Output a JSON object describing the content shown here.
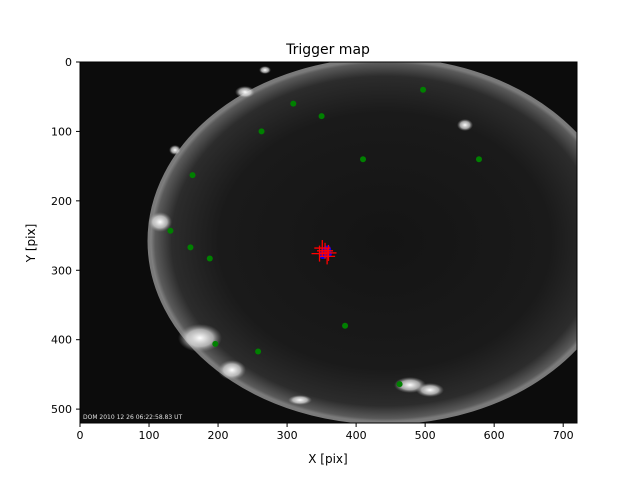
{
  "chart_data": {
    "type": "scatter",
    "title": "Trigger map",
    "xlabel": "X [pix]",
    "ylabel": "Y [pix]",
    "xlim": [
      0,
      720
    ],
    "ylim": [
      520,
      0
    ],
    "y_inverted": true,
    "xticks": [
      0,
      100,
      200,
      300,
      400,
      500,
      600,
      700
    ],
    "yticks": [
      0,
      100,
      200,
      300,
      400,
      500
    ],
    "background": "all-sky camera image (fisheye night sky)",
    "timestamp_overlay": "DOM 2010 12 26 06:22:58.83 UT",
    "series": [
      {
        "color": "#008000",
        "marker": "circle",
        "points": [
          {
            "x": 309,
            "y": 60
          },
          {
            "x": 350,
            "y": 78
          },
          {
            "x": 263,
            "y": 100
          },
          {
            "x": 410,
            "y": 140
          },
          {
            "x": 578,
            "y": 140
          },
          {
            "x": 163,
            "y": 163
          },
          {
            "x": 131,
            "y": 243
          },
          {
            "x": 160,
            "y": 267
          },
          {
            "x": 188,
            "y": 283
          },
          {
            "x": 384,
            "y": 380
          },
          {
            "x": 196,
            "y": 406
          },
          {
            "x": 258,
            "y": 417
          },
          {
            "x": 463,
            "y": 464
          },
          {
            "x": 497,
            "y": 40
          }
        ]
      },
      {
        "color": "#0000ff",
        "marker": "circle-cluster",
        "points": [
          {
            "x": 355,
            "y": 272
          },
          {
            "x": 359,
            "y": 276
          },
          {
            "x": 352,
            "y": 278
          },
          {
            "x": 358,
            "y": 270
          }
        ]
      },
      {
        "color": "#ff0000",
        "marker": "plus",
        "points": [
          {
            "x": 355,
            "y": 272
          },
          {
            "x": 360,
            "y": 275
          },
          {
            "x": 351,
            "y": 268
          },
          {
            "x": 358,
            "y": 280
          },
          {
            "x": 347,
            "y": 276
          }
        ]
      }
    ]
  }
}
